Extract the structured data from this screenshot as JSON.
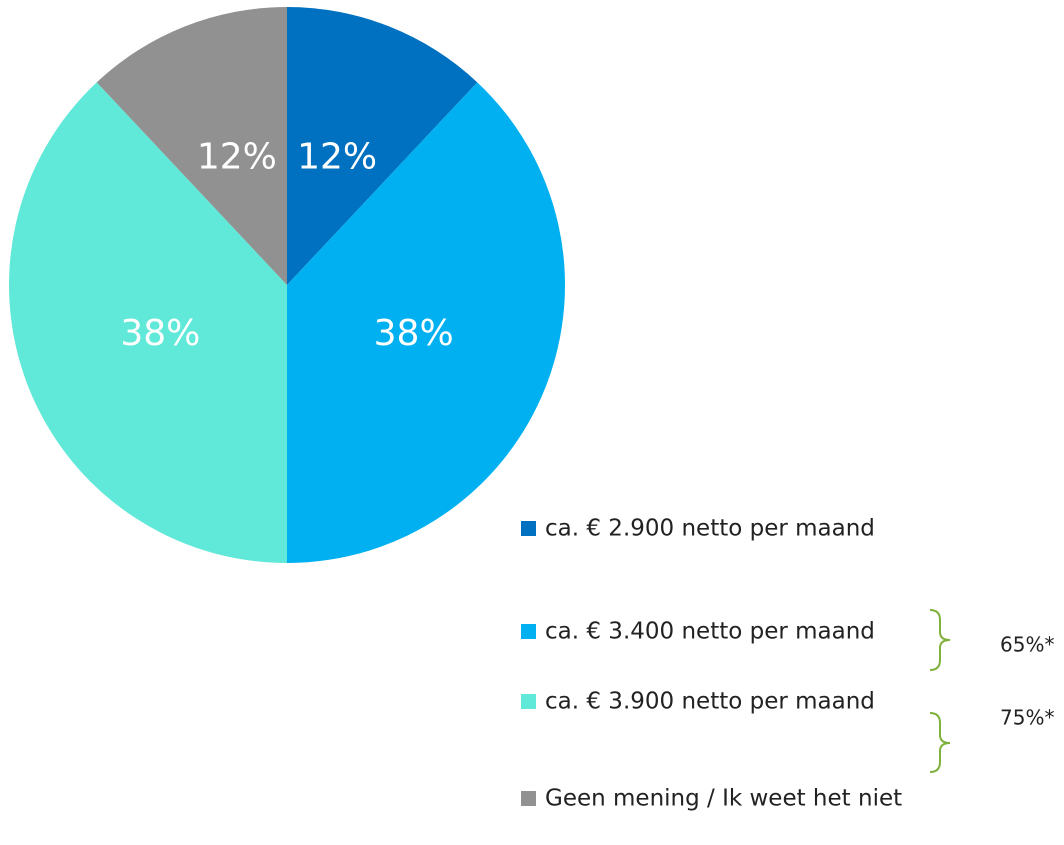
{
  "chart_data": {
    "type": "pie",
    "categories": [
      "ca. € 2.900 netto per maand",
      "ca. € 3.400 netto per maand",
      "ca. € 3.900 netto per maand",
      "Geen mening / Ik weet het niet"
    ],
    "values": [
      12,
      38,
      38,
      12
    ],
    "value_labels": [
      "12%",
      "38%",
      "38%",
      "12%"
    ],
    "colors": [
      "#0070c0",
      "#00b0f0",
      "#60e8d8",
      "#919191"
    ],
    "legend": "bottom-right",
    "annotations": [
      "65%*",
      "75%*"
    ]
  }
}
